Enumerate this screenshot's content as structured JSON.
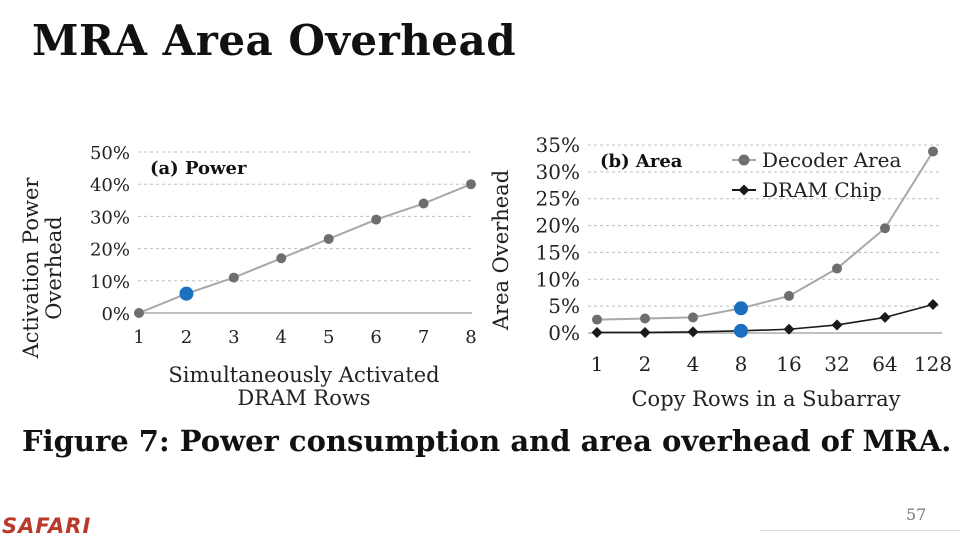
{
  "slide": {
    "title": "MRA Area Overhead",
    "caption": "Figure 7: Power consumption and area overhead of MRA.",
    "brand": "SAFARI",
    "page_number": "57"
  },
  "colors": {
    "grid": "#bfbfbf",
    "gray_series": "#a8a8a8",
    "gray_marker": "#6e6e6e",
    "black_series": "#1a1a1a",
    "highlight": "#1a6fbf"
  },
  "chart_data": [
    {
      "type": "line",
      "title": "(a) Power",
      "xlabel": "Simultaneously Activated DRAM Rows",
      "ylabel": "Activation Power Overhead",
      "categories": [
        "1",
        "2",
        "3",
        "4",
        "5",
        "6",
        "7",
        "8"
      ],
      "y_ticks": [
        "0%",
        "10%",
        "20%",
        "30%",
        "40%",
        "50%"
      ],
      "ylim": [
        0,
        50
      ],
      "grid": true,
      "series": [
        {
          "values": [
            0,
            6,
            11,
            17,
            23,
            29,
            34,
            40
          ],
          "marker": "circle"
        }
      ],
      "highlight": {
        "category": "2",
        "value": 6
      }
    },
    {
      "type": "line",
      "title": "(b) Area",
      "xlabel": "Copy Rows in a Subarray",
      "ylabel": "Area Overhead",
      "categories": [
        "1",
        "2",
        "4",
        "8",
        "16",
        "32",
        "64",
        "128"
      ],
      "y_ticks": [
        "0%",
        "5%",
        "10%",
        "15%",
        "20%",
        "25%",
        "30%",
        "35%"
      ],
      "ylim": [
        0,
        35
      ],
      "grid": true,
      "legend_position": "top",
      "series": [
        {
          "name": "Decoder Area",
          "values": [
            2.5,
            2.7,
            2.9,
            4.6,
            6.9,
            12.0,
            19.5,
            33.8
          ],
          "marker": "circle"
        },
        {
          "name": "DRAM Chip",
          "values": [
            0.1,
            0.1,
            0.2,
            0.4,
            0.7,
            1.5,
            2.9,
            5.3
          ],
          "marker": "diamond"
        }
      ],
      "highlights": [
        {
          "category": "8",
          "value": 4.6
        },
        {
          "category": "8",
          "value": 0.4
        }
      ]
    }
  ]
}
